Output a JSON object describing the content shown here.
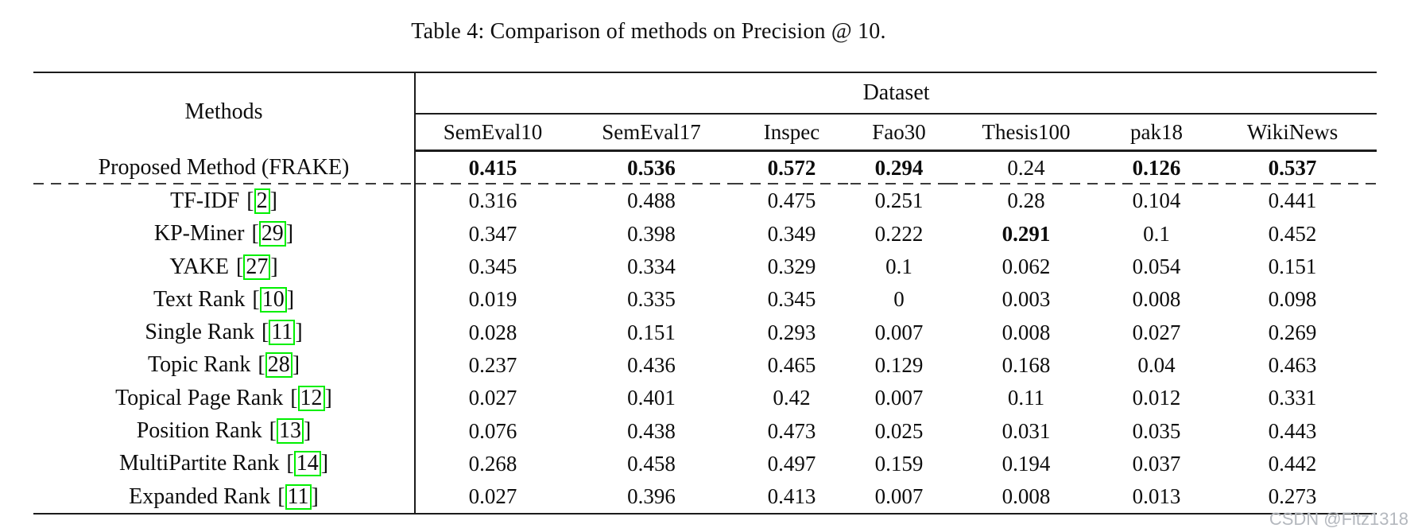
{
  "caption": "Table 4: Comparison of methods on Precision @ 10.",
  "watermark": "CSDN @Fitz1318",
  "colors": {
    "citation_border": "#00ef00",
    "rule": "#1c1c1c",
    "watermark": "#b4b8be"
  },
  "table": {
    "methods_header": "Methods",
    "dataset_header": "Dataset",
    "columns": [
      "SemEval10",
      "SemEval17",
      "Inspec",
      "Fao30",
      "Thesis100",
      "pak18",
      "WikiNews"
    ],
    "rows": [
      {
        "method": "Proposed Method (FRAKE)",
        "citation": "",
        "values": [
          "0.415",
          "0.536",
          "0.572",
          "0.294",
          "0.24",
          "0.126",
          "0.537"
        ],
        "bold": [
          true,
          true,
          true,
          true,
          false,
          true,
          true
        ]
      },
      {
        "method": "TF-IDF",
        "citation": "2",
        "values": [
          "0.316",
          "0.488",
          "0.475",
          "0.251",
          "0.28",
          "0.104",
          "0.441"
        ],
        "bold": [
          false,
          false,
          false,
          false,
          false,
          false,
          false
        ]
      },
      {
        "method": "KP-Miner",
        "citation": "29",
        "values": [
          "0.347",
          "0.398",
          "0.349",
          "0.222",
          "0.291",
          "0.1",
          "0.452"
        ],
        "bold": [
          false,
          false,
          false,
          false,
          true,
          false,
          false
        ]
      },
      {
        "method": "YAKE",
        "citation": "27",
        "values": [
          "0.345",
          "0.334",
          "0.329",
          "0.1",
          "0.062",
          "0.054",
          "0.151"
        ],
        "bold": [
          false,
          false,
          false,
          false,
          false,
          false,
          false
        ]
      },
      {
        "method": "Text Rank",
        "citation": "10",
        "values": [
          "0.019",
          "0.335",
          "0.345",
          "0",
          "0.003",
          "0.008",
          "0.098"
        ],
        "bold": [
          false,
          false,
          false,
          false,
          false,
          false,
          false
        ]
      },
      {
        "method": "Single Rank",
        "citation": "11",
        "values": [
          "0.028",
          "0.151",
          "0.293",
          "0.007",
          "0.008",
          "0.027",
          "0.269"
        ],
        "bold": [
          false,
          false,
          false,
          false,
          false,
          false,
          false
        ]
      },
      {
        "method": "Topic Rank",
        "citation": "28",
        "values": [
          "0.237",
          "0.436",
          "0.465",
          "0.129",
          "0.168",
          "0.04",
          "0.463"
        ],
        "bold": [
          false,
          false,
          false,
          false,
          false,
          false,
          false
        ]
      },
      {
        "method": "Topical Page Rank",
        "citation": "12",
        "values": [
          "0.027",
          "0.401",
          "0.42",
          "0.007",
          "0.11",
          "0.012",
          "0.331"
        ],
        "bold": [
          false,
          false,
          false,
          false,
          false,
          false,
          false
        ]
      },
      {
        "method": "Position Rank",
        "citation": "13",
        "values": [
          "0.076",
          "0.438",
          "0.473",
          "0.025",
          "0.031",
          "0.035",
          "0.443"
        ],
        "bold": [
          false,
          false,
          false,
          false,
          false,
          false,
          false
        ]
      },
      {
        "method": "MultiPartite Rank",
        "citation": "14",
        "values": [
          "0.268",
          "0.458",
          "0.497",
          "0.159",
          "0.194",
          "0.037",
          "0.442"
        ],
        "bold": [
          false,
          false,
          false,
          false,
          false,
          false,
          false
        ]
      },
      {
        "method": "Expanded Rank",
        "citation": "11",
        "values": [
          "0.027",
          "0.396",
          "0.413",
          "0.007",
          "0.008",
          "0.013",
          "0.273"
        ],
        "bold": [
          false,
          false,
          false,
          false,
          false,
          false,
          false
        ]
      }
    ]
  }
}
